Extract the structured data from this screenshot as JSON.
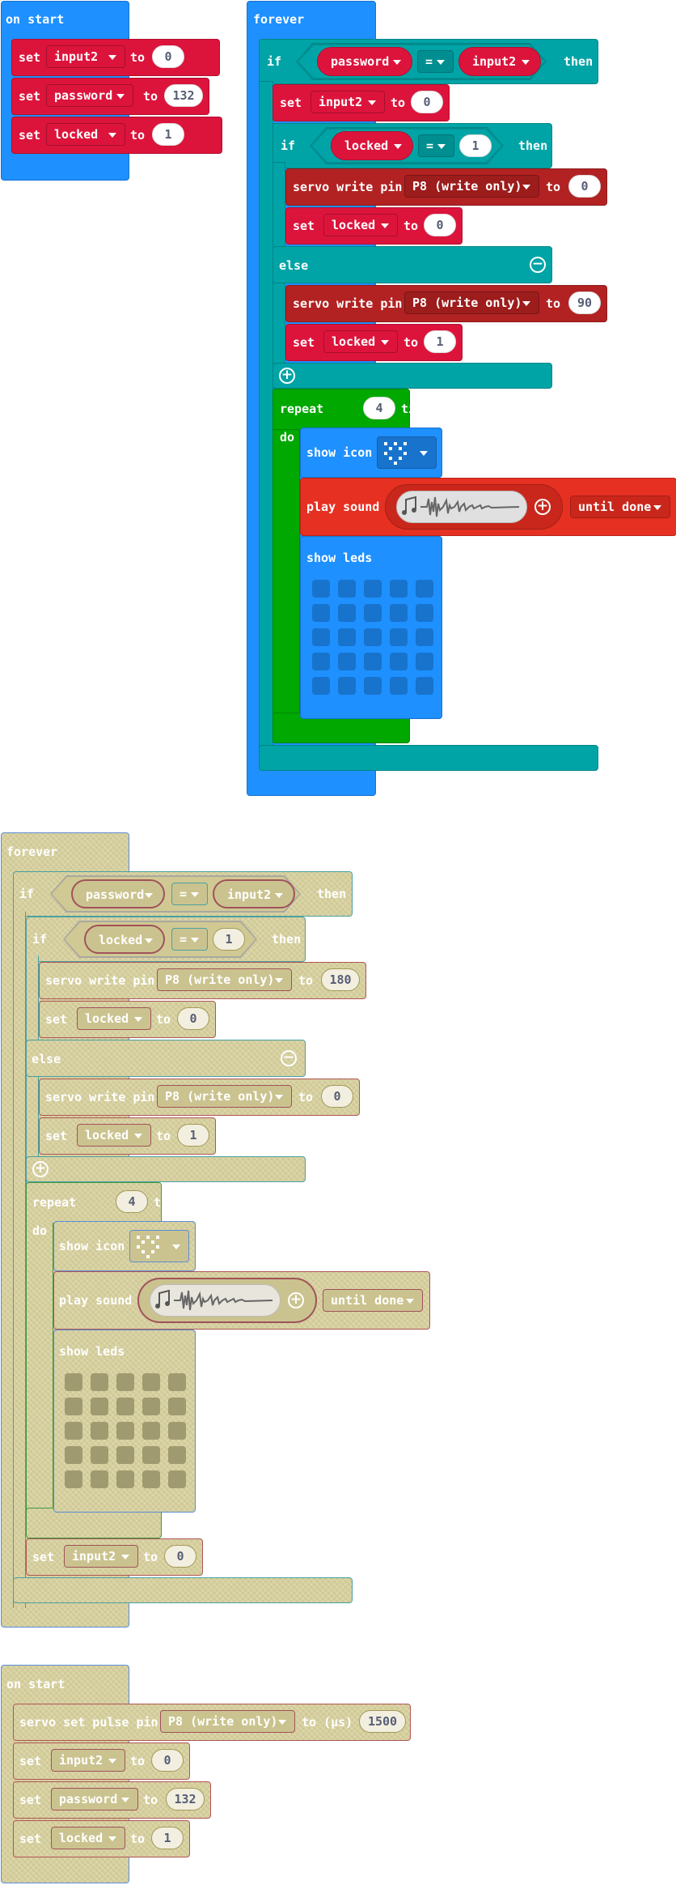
{
  "on_start_1": {
    "title": "on start",
    "rows": [
      {
        "set": "set",
        "var": "input2",
        "to": "to",
        "value": "0"
      },
      {
        "set": "set",
        "var": "password",
        "to": "to",
        "value": "132"
      },
      {
        "set": "set",
        "var": "locked",
        "to": "to",
        "value": "1"
      }
    ]
  },
  "forever_1": {
    "title": "forever",
    "if": "if",
    "then": "then",
    "cond_left": "password",
    "op": "=",
    "cond_right": "input2",
    "set_input2": {
      "set": "set",
      "var": "input2",
      "to": "to",
      "value": "0"
    },
    "inner_if": {
      "if": "if",
      "then": "then",
      "var": "locked",
      "op": "=",
      "value": "1"
    },
    "servo1": {
      "label": "servo write pin",
      "pin": "P8 (write only)",
      "to": "to",
      "value": "0"
    },
    "set_locked1": {
      "set": "set",
      "var": "locked",
      "to": "to",
      "value": "0"
    },
    "else": "else",
    "servo2": {
      "label": "servo write pin",
      "pin": "P8 (write only)",
      "to": "to",
      "value": "90"
    },
    "set_locked2": {
      "set": "set",
      "var": "locked",
      "to": "to",
      "value": "1"
    },
    "repeat": {
      "label": "repeat",
      "value": "4",
      "times": "times",
      "do": "do"
    },
    "show_icon": "show icon",
    "play_sound": {
      "label": "play sound",
      "mode": "until done"
    },
    "show_leds": "show leds"
  },
  "forever_2": {
    "title": "forever",
    "if": "if",
    "then": "then",
    "cond_left": "password",
    "op": "=",
    "cond_right": "input2",
    "inner_if": {
      "if": "if",
      "then": "then",
      "var": "locked",
      "op": "=",
      "value": "1"
    },
    "servo1": {
      "label": "servo write pin",
      "pin": "P8 (write only)",
      "to": "to",
      "value": "180"
    },
    "set_locked1": {
      "set": "set",
      "var": "locked",
      "to": "to",
      "value": "0"
    },
    "else": "else",
    "servo2": {
      "label": "servo write pin",
      "pin": "P8 (write only)",
      "to": "to",
      "value": "0"
    },
    "set_locked2": {
      "set": "set",
      "var": "locked",
      "to": "to",
      "value": "1"
    },
    "repeat": {
      "label": "repeat",
      "value": "4",
      "times": "times",
      "do": "do"
    },
    "show_icon": "show icon",
    "play_sound": {
      "label": "play sound",
      "mode": "until done"
    },
    "show_leds": "show leds",
    "set_input2": {
      "set": "set",
      "var": "input2",
      "to": "to",
      "value": "0"
    }
  },
  "on_start_2": {
    "title": "on start",
    "servo_pulse": {
      "label": "servo set pulse pin",
      "pin": "P8 (write only)",
      "to": "to (µs)",
      "value": "1500"
    },
    "rows": [
      {
        "set": "set",
        "var": "input2",
        "to": "to",
        "value": "0"
      },
      {
        "set": "set",
        "var": "password",
        "to": "to",
        "value": "132"
      },
      {
        "set": "set",
        "var": "locked",
        "to": "to",
        "value": "1"
      }
    ]
  },
  "colors": {
    "basic": "#1e90ff",
    "logic": "#00a4a6",
    "loops": "#00a800",
    "variables": "#dc143c",
    "pins": "#b22222",
    "music": "#e63022",
    "disabled": "#d0c994"
  },
  "icons": [
    "minus-circle-icon",
    "plus-circle-icon",
    "music-note-icon",
    "dropdown-arrow-icon",
    "led-icon-image"
  ]
}
